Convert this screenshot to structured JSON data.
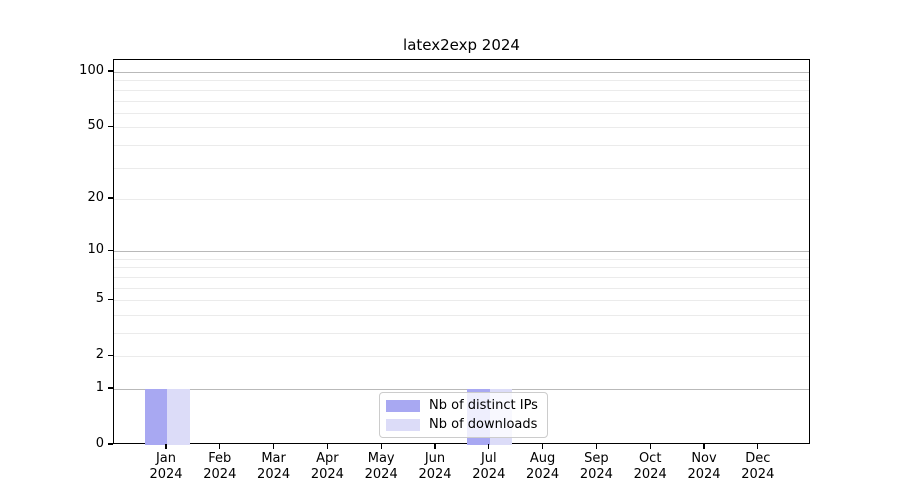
{
  "chart_data": {
    "type": "bar",
    "title": "latex2exp 2024",
    "categories": [
      "Jan 2024",
      "Feb 2024",
      "Mar 2024",
      "Apr 2024",
      "May 2024",
      "Jun 2024",
      "Jul 2024",
      "Aug 2024",
      "Sep 2024",
      "Oct 2024",
      "Nov 2024",
      "Dec 2024"
    ],
    "series": [
      {
        "name": "Nb of distinct IPs",
        "color": "#a8a8f2",
        "values": [
          1,
          0,
          0,
          0,
          0,
          0,
          1,
          0,
          0,
          0,
          0,
          0
        ]
      },
      {
        "name": "Nb of downloads",
        "color": "#dcdcf8",
        "values": [
          1,
          0,
          0,
          0,
          0,
          0,
          1,
          0,
          0,
          0,
          0,
          0
        ]
      }
    ],
    "y_axis": {
      "scale": "log1p",
      "ticks": [
        0,
        1,
        2,
        5,
        10,
        20,
        50,
        100
      ],
      "major_gridlines": [
        1,
        10,
        100
      ],
      "minor_gridlines": [
        2,
        3,
        4,
        5,
        6,
        7,
        8,
        9,
        20,
        30,
        40,
        50,
        60,
        70,
        80,
        90
      ],
      "ylim": [
        0,
        116
      ]
    },
    "xlabel": "",
    "ylabel": "",
    "grid": true,
    "legend": {
      "location": "lower center"
    }
  }
}
